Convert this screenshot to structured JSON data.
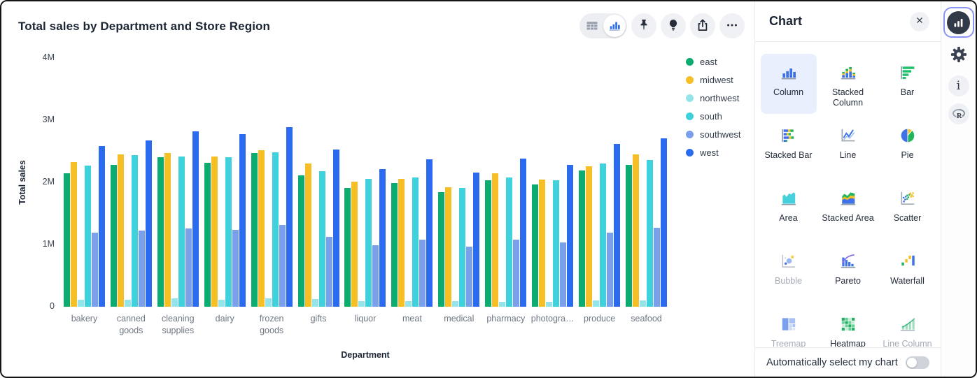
{
  "header": {
    "title": "Total sales by Department and Store Region"
  },
  "toolbar": {
    "view_toggle": {
      "selected": "chart",
      "options": [
        "table",
        "chart"
      ]
    },
    "buttons": [
      {
        "name": "pin",
        "icon": "pin-icon"
      },
      {
        "name": "insights",
        "icon": "lightbulb-icon"
      },
      {
        "name": "share",
        "icon": "share-icon"
      },
      {
        "name": "more-options",
        "icon": "ellipsis-icon"
      }
    ]
  },
  "chart_data": {
    "type": "bar",
    "title": "Total sales by Department and Store Region",
    "xlabel": "Department",
    "ylabel": "Total sales",
    "unit": "M",
    "ylim": [
      0,
      4
    ],
    "grid": false,
    "legend_position": "right",
    "yticks": [
      {
        "value": 0,
        "label": "0"
      },
      {
        "value": 1,
        "label": "1M"
      },
      {
        "value": 2,
        "label": "2M"
      },
      {
        "value": 3,
        "label": "3M"
      },
      {
        "value": 4,
        "label": "4M"
      }
    ],
    "categories": [
      "bakery",
      "canned goods",
      "cleaning supplies",
      "dairy",
      "frozen goods",
      "gifts",
      "liquor",
      "meat",
      "medical",
      "pharmacy",
      "photogra…",
      "produce",
      "seafood"
    ],
    "series": [
      {
        "name": "east",
        "color": "#0CAB6F",
        "values": [
          2.15,
          2.28,
          2.4,
          2.32,
          2.47,
          2.11,
          1.91,
          1.99,
          1.84,
          2.03,
          1.97,
          2.19,
          2.28
        ]
      },
      {
        "name": "midwest",
        "color": "#F6BF26",
        "values": [
          2.33,
          2.45,
          2.47,
          2.42,
          2.52,
          2.3,
          2.01,
          2.06,
          1.92,
          2.15,
          2.04,
          2.26,
          2.45
        ]
      },
      {
        "name": "northwest",
        "color": "#95E4EC",
        "values": [
          0.11,
          0.11,
          0.13,
          0.11,
          0.13,
          0.12,
          0.09,
          0.09,
          0.09,
          0.08,
          0.08,
          0.1,
          0.1
        ]
      },
      {
        "name": "south",
        "color": "#3FD2DC",
        "values": [
          2.27,
          2.44,
          2.42,
          2.4,
          2.48,
          2.18,
          2.06,
          2.08,
          1.91,
          2.08,
          2.03,
          2.3,
          2.36
        ]
      },
      {
        "name": "southwest",
        "color": "#7BA0EB",
        "values": [
          1.19,
          1.23,
          1.26,
          1.24,
          1.31,
          1.12,
          0.99,
          1.08,
          0.97,
          1.08,
          1.03,
          1.19,
          1.27
        ]
      },
      {
        "name": "west",
        "color": "#2B6BEF",
        "values": [
          2.58,
          2.67,
          2.82,
          2.77,
          2.89,
          2.53,
          2.21,
          2.37,
          2.16,
          2.38,
          2.28,
          2.62,
          2.71
        ]
      }
    ]
  },
  "panel": {
    "title": "Chart",
    "close_icon": "close-icon",
    "chart_types": [
      {
        "label": "Column",
        "icon": "column-icon",
        "selected": true,
        "enabled": true
      },
      {
        "label": "Stacked Column",
        "icon": "stacked-column-icon",
        "selected": false,
        "enabled": true
      },
      {
        "label": "Bar",
        "icon": "bar-icon",
        "selected": false,
        "enabled": true
      },
      {
        "label": "Stacked Bar",
        "icon": "stacked-bar-icon",
        "selected": false,
        "enabled": true
      },
      {
        "label": "Line",
        "icon": "line-icon",
        "selected": false,
        "enabled": true
      },
      {
        "label": "Pie",
        "icon": "pie-icon",
        "selected": false,
        "enabled": true
      },
      {
        "label": "Area",
        "icon": "area-icon",
        "selected": false,
        "enabled": true
      },
      {
        "label": "Stacked Area",
        "icon": "stacked-area-icon",
        "selected": false,
        "enabled": true
      },
      {
        "label": "Scatter",
        "icon": "scatter-icon",
        "selected": false,
        "enabled": true
      },
      {
        "label": "Bubble",
        "icon": "bubble-icon",
        "selected": false,
        "enabled": false
      },
      {
        "label": "Pareto",
        "icon": "pareto-icon",
        "selected": false,
        "enabled": true
      },
      {
        "label": "Waterfall",
        "icon": "waterfall-icon",
        "selected": false,
        "enabled": true
      },
      {
        "label": "Treemap",
        "icon": "treemap-icon",
        "selected": false,
        "enabled": false
      },
      {
        "label": "Heatmap",
        "icon": "heatmap-icon",
        "selected": false,
        "enabled": true
      },
      {
        "label": "Line Column",
        "icon": "line-column-icon",
        "selected": false,
        "enabled": false
      }
    ],
    "auto_select": {
      "label": "Automatically select my chart",
      "enabled": false
    }
  },
  "rail": {
    "items": [
      {
        "name": "chart-settings",
        "icon": "rail-chart-icon",
        "selected": true
      },
      {
        "name": "display-settings",
        "icon": "gear-icon",
        "selected": false
      },
      {
        "name": "info",
        "icon": "info-icon",
        "selected": false
      },
      {
        "name": "r-console",
        "icon": "r-logo-icon",
        "selected": false
      }
    ]
  }
}
